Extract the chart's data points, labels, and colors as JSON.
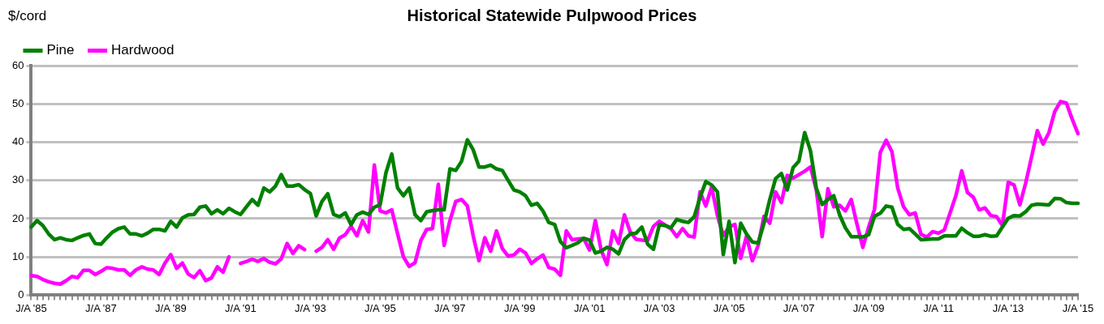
{
  "chart_data": {
    "type": "line",
    "title": "Historical Statewide Pulpwood Prices",
    "ylabel": "$/cord",
    "categories": [
      "J/A '85",
      null,
      null,
      null,
      null,
      null,
      null,
      null,
      null,
      null,
      null,
      null,
      "J/A '87",
      null,
      null,
      null,
      null,
      null,
      null,
      null,
      null,
      null,
      null,
      null,
      "J/A '89",
      null,
      null,
      null,
      null,
      null,
      null,
      null,
      null,
      null,
      null,
      null,
      "J/A '91",
      null,
      null,
      null,
      null,
      null,
      null,
      null,
      null,
      null,
      null,
      null,
      "J/A '93",
      null,
      null,
      null,
      null,
      null,
      null,
      null,
      null,
      null,
      null,
      null,
      "J/A '95",
      null,
      null,
      null,
      null,
      null,
      null,
      null,
      null,
      null,
      null,
      null,
      "J/A '97",
      null,
      null,
      null,
      null,
      null,
      null,
      null,
      null,
      null,
      null,
      null,
      "J/A '99",
      null,
      null,
      null,
      null,
      null,
      null,
      null,
      null,
      null,
      null,
      null,
      "J/A '01",
      null,
      null,
      null,
      null,
      null,
      null,
      null,
      null,
      null,
      null,
      null,
      "J/A '03",
      null,
      null,
      null,
      null,
      null,
      null,
      null,
      null,
      null,
      null,
      null,
      "J/A '05",
      null,
      null,
      null,
      null,
      null,
      null,
      null,
      null,
      null,
      null,
      null,
      "J/A '07",
      null,
      null,
      null,
      null,
      null,
      null,
      null,
      null,
      null,
      null,
      null,
      "J/A '09",
      null,
      null,
      null,
      null,
      null,
      null,
      null,
      null,
      null,
      null,
      null,
      "J/A '11",
      null,
      null,
      null,
      null,
      null,
      null,
      null,
      null,
      null,
      null,
      null,
      "J/A '13",
      null,
      null,
      null,
      null,
      null,
      null,
      null,
      null,
      null,
      null,
      null,
      "J/A '15"
    ],
    "ylim": [
      0,
      60
    ],
    "yticks": [
      0,
      10,
      20,
      30,
      40,
      50,
      60
    ],
    "grid": "y",
    "legend": "top left",
    "line_style": "solid",
    "series": [
      {
        "name": "Pine",
        "color": "#008000",
        "values": [
          17.8,
          19.5,
          18.2,
          16,
          14.5,
          15,
          14.5,
          14.3,
          15,
          15.6,
          16,
          13.5,
          13.3,
          15,
          16.5,
          17.4,
          17.8,
          16,
          16,
          15.5,
          16.2,
          17.2,
          17.2,
          16.8,
          19.3,
          17.8,
          20.2,
          21,
          21.1,
          23,
          23.3,
          21.3,
          22.3,
          21.3,
          22.7,
          21.8,
          21.1,
          23.1,
          25,
          23.5,
          28,
          27,
          28.5,
          31.5,
          28.5,
          28.5,
          28.9,
          27.6,
          26.6,
          20.7,
          24.5,
          26.5,
          21.1,
          20.5,
          21.5,
          18.4,
          21,
          21.7,
          21.1,
          23,
          23.6,
          32,
          36.9,
          28,
          26,
          28,
          21,
          19.5,
          21.8,
          22.1,
          22.3,
          22.3,
          33,
          32.6,
          35,
          40.6,
          38,
          33.5,
          33.5,
          34,
          33,
          32.6,
          30,
          27.5,
          27,
          26,
          23.5,
          24,
          22,
          19,
          18.5,
          14,
          12.4,
          13,
          13.7,
          14.9,
          14.4,
          11,
          11.5,
          12.5,
          12,
          10.8,
          14.5,
          16,
          16.2,
          17.8,
          13.3,
          12,
          18.4,
          18.2,
          17.6,
          19.8,
          19.3,
          19,
          20.5,
          25.5,
          29.7,
          28.8,
          27,
          10.6,
          19.3,
          8.5,
          18.8,
          16,
          13.9,
          13.6,
          18.8,
          25,
          30.5,
          31.8,
          27.5,
          33.3,
          35,
          42.5,
          37.7,
          28,
          23.7,
          25,
          26,
          21,
          17.6,
          15.3,
          15.3,
          15.2,
          15.8,
          20.6,
          21.4,
          23.3,
          23,
          18.5,
          17.2,
          17.4,
          16,
          14.5,
          14.6,
          14.7,
          14.7,
          15.5,
          15.5,
          15.5,
          17.5,
          16.3,
          15.4,
          15.4,
          15.8,
          15.4,
          15.5,
          17.8,
          20.1,
          20.8,
          20.7,
          21.8,
          23.5,
          23.8,
          23.7,
          23.6,
          25.3,
          25.2,
          24.2,
          24,
          24
        ]
      },
      {
        "name": "Hardwood",
        "color": "#ff00ff",
        "values": [
          5.1,
          4.9,
          4.1,
          3.5,
          3.1,
          2.9,
          3.8,
          4.9,
          4.6,
          6.5,
          6.5,
          5.4,
          6.2,
          7.2,
          7,
          6.6,
          6.6,
          5.2,
          6.6,
          7.4,
          6.8,
          6.6,
          5.4,
          8.4,
          10.6,
          7,
          8.4,
          5.5,
          4.6,
          6.4,
          3.8,
          4.5,
          7.4,
          6,
          10,
          null,
          8.3,
          8.8,
          9.4,
          8.8,
          9.6,
          8.6,
          8.2,
          9.5,
          13.5,
          10.9,
          12.9,
          11.9,
          null,
          11.5,
          12.5,
          14.5,
          12,
          14.9,
          15.8,
          18,
          15.5,
          19.5,
          16.5,
          34,
          22,
          21.5,
          22.3,
          16,
          10,
          7.5,
          8.5,
          14.3,
          17.2,
          17.4,
          29,
          13,
          19.5,
          24.5,
          25,
          23.3,
          15.5,
          9,
          15,
          11.5,
          16.8,
          12.2,
          10.2,
          10.5,
          12,
          11,
          8.3,
          9.5,
          10.5,
          7.2,
          6.8,
          5.2,
          16.8,
          14.5,
          14.7,
          14.8,
          11.8,
          19.5,
          11.8,
          8,
          16.8,
          13.5,
          21,
          16.5,
          14.6,
          14.4,
          14.3,
          18,
          19.3,
          18.3,
          17.4,
          15.3,
          17.4,
          15.5,
          15.2,
          27,
          23.3,
          28.3,
          20.8,
          15.6,
          17.8,
          18.5,
          9.6,
          15.5,
          9,
          13,
          20.6,
          18.8,
          27,
          24.2,
          31.3,
          30.6,
          31.5,
          32.4,
          33.5,
          27.5,
          15.3,
          27.8,
          23.1,
          23.5,
          22,
          25,
          18.5,
          12.5,
          17.8,
          22.4,
          37.3,
          40.5,
          37.5,
          28,
          23.1,
          21,
          21.5,
          15.9,
          15.2,
          16.6,
          16.2,
          17,
          21.5,
          26,
          32.5,
          26.8,
          25.6,
          22.3,
          22.8,
          20.8,
          20.5,
          18.2,
          29.5,
          28.8,
          23.6,
          29.3,
          36,
          43,
          39.5,
          42.5,
          48,
          50.6,
          50.2,
          46,
          42.2
        ]
      }
    ]
  }
}
